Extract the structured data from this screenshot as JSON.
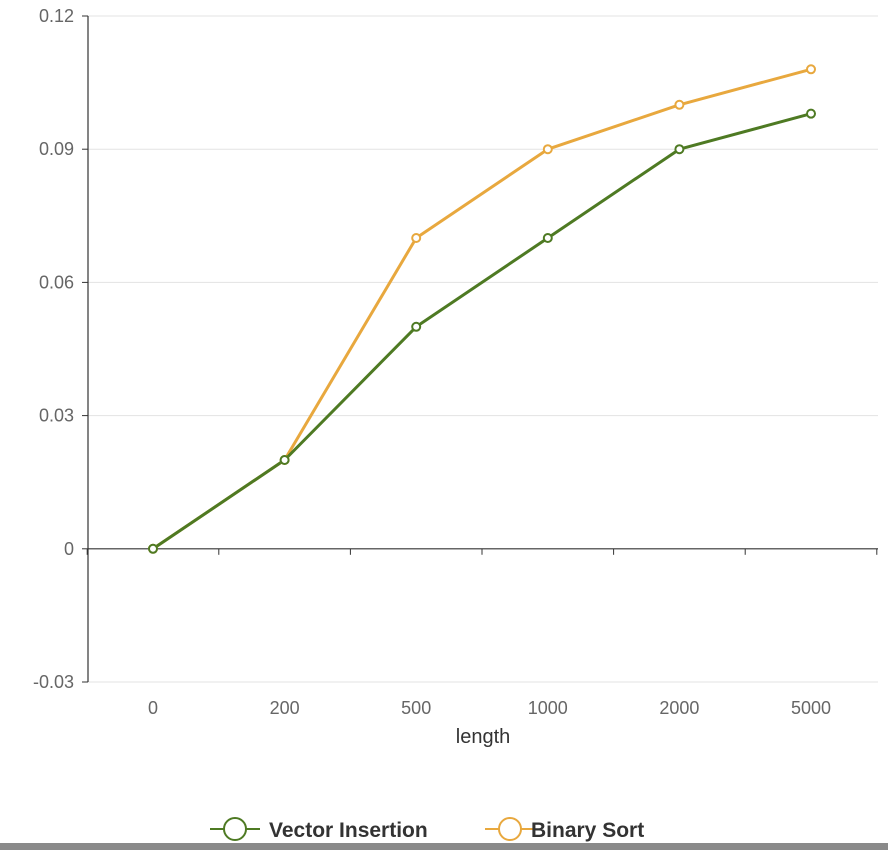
{
  "chart_data": {
    "type": "line",
    "categories": [
      "0",
      "200",
      "500",
      "1000",
      "2000",
      "5000"
    ],
    "xlabel": "length",
    "ylabel": "",
    "ylim": [
      -0.03,
      0.12
    ],
    "yticks": [
      "0.12",
      "0.09",
      "0.06",
      "0.03",
      "0",
      "-0.03"
    ],
    "grid": true,
    "legend_position": "bottom",
    "series": [
      {
        "name": "Vector Insertion",
        "color": "#4e7a23",
        "values": [
          0,
          0.02,
          0.05,
          0.07,
          0.09,
          0.098
        ]
      },
      {
        "name": "Binary Sort",
        "color": "#e8a83e",
        "values": [
          0,
          0.02,
          0.07,
          0.09,
          0.1,
          0.108
        ]
      }
    ]
  }
}
